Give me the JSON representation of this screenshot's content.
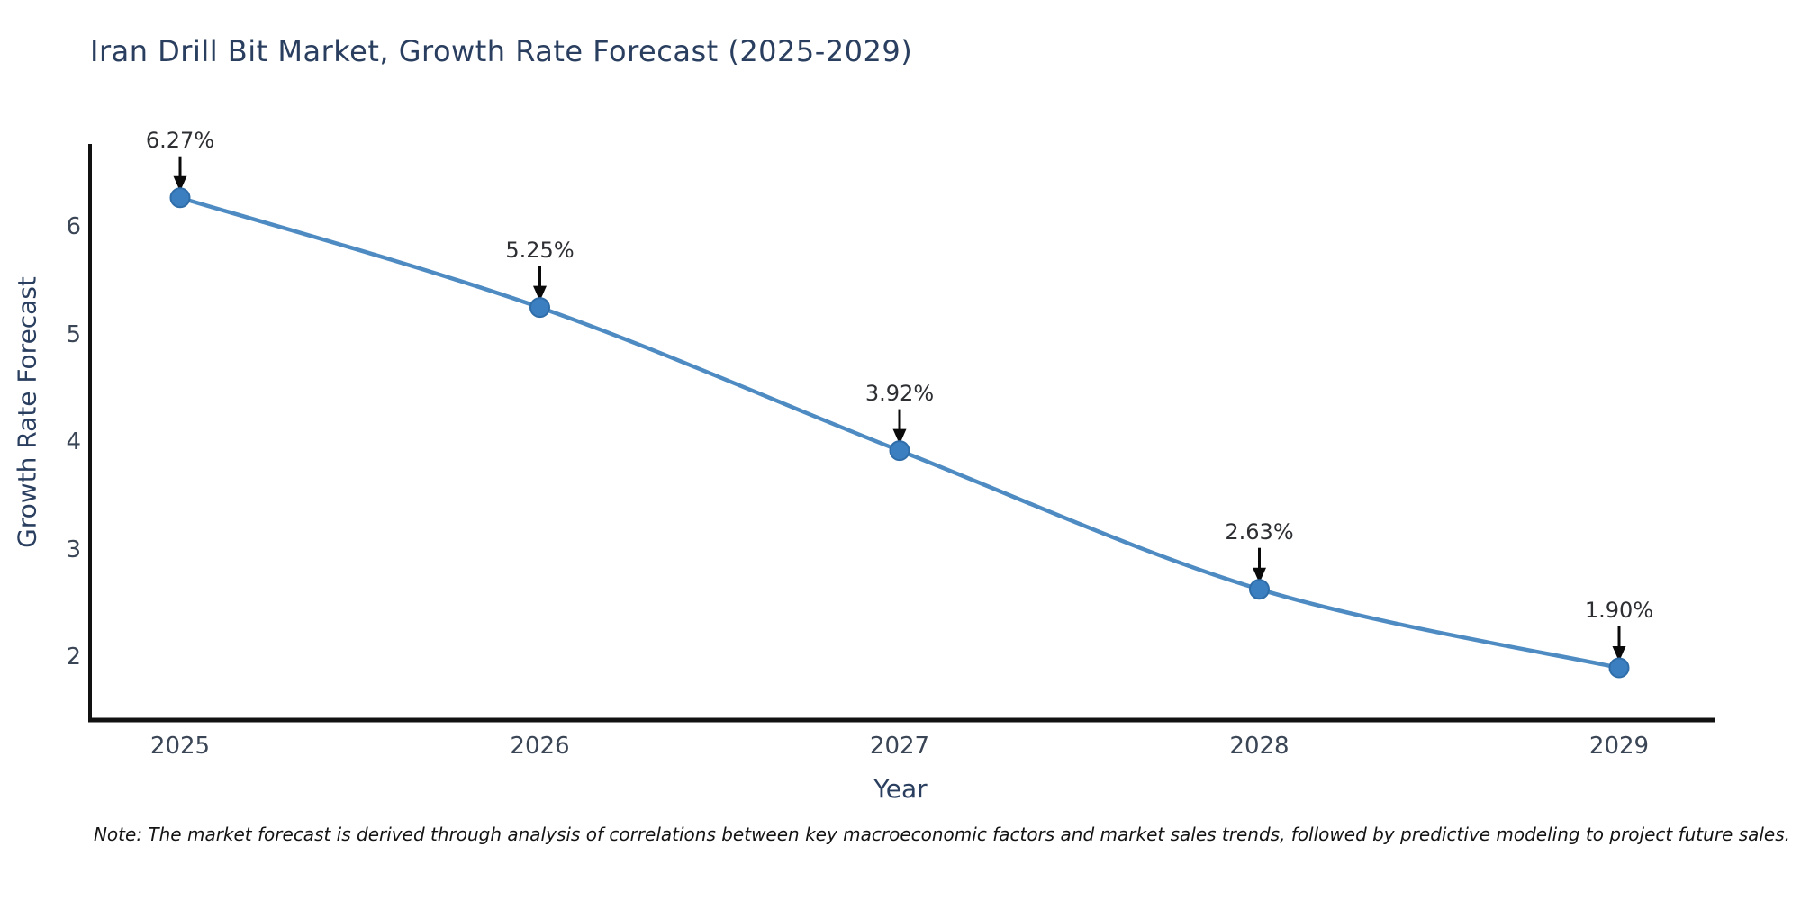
{
  "note": "Note: The market forecast is derived through analysis of correlations between key macroeconomic factors and market sales trends, followed by predictive modeling to project future sales.",
  "chart_data": {
    "type": "line",
    "title": "Iran Drill Bit Market, Growth Rate Forecast (2025-2029)",
    "xlabel": "Year",
    "ylabel": "Growth Rate Forecast",
    "categories": [
      "2025",
      "2026",
      "2027",
      "2028",
      "2029"
    ],
    "values": [
      6.27,
      5.25,
      3.92,
      2.63,
      1.9
    ],
    "point_labels": [
      "6.27%",
      "5.25%",
      "3.92%",
      "2.63%",
      "1.90%"
    ],
    "yticks": [
      2,
      3,
      4,
      5,
      6
    ],
    "ylim": [
      1.41,
      6.77
    ],
    "grid": false,
    "legend": null,
    "smooth": true,
    "line_color": "#4d8bc2",
    "marker_fill": "#3b7fc0",
    "marker_edge": "#2f6da9",
    "axis_color": "#111111",
    "annotation_arrow_color": "#0a0a0a"
  }
}
